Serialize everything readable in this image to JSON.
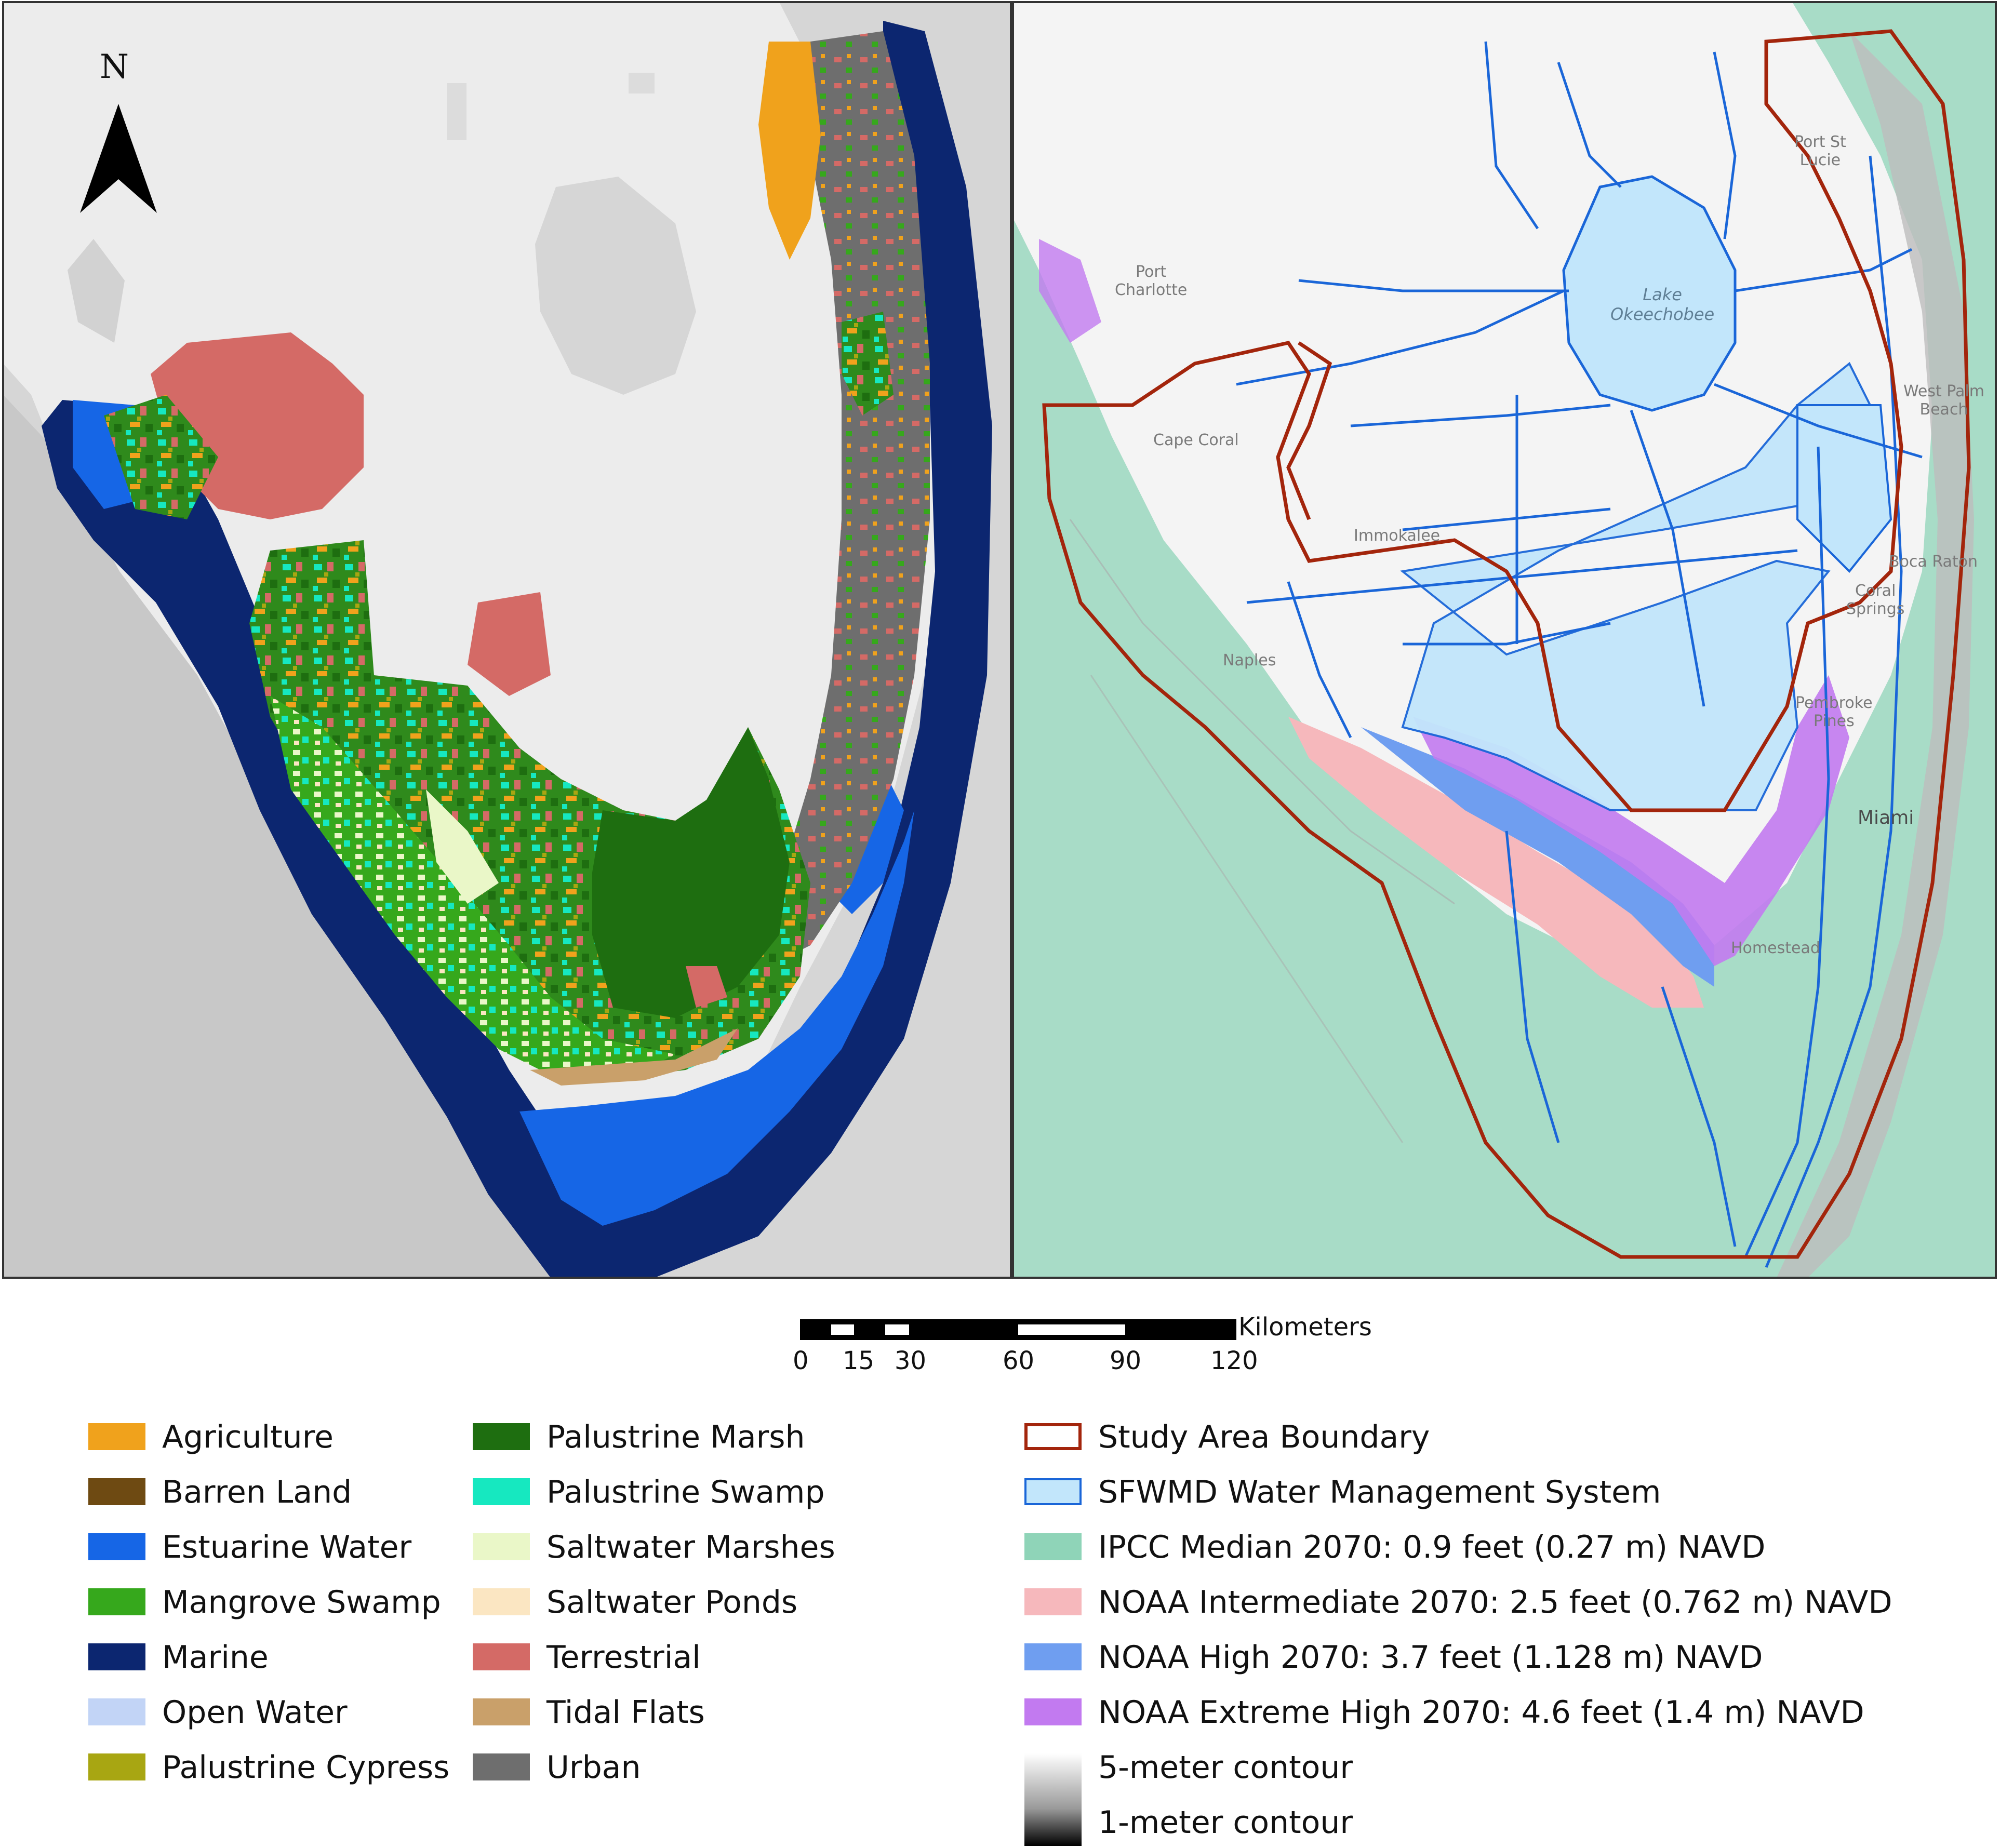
{
  "north_arrow": {
    "letter": "N"
  },
  "right_map_labels": {
    "port_charlotte": [
      "Port",
      "Charlotte"
    ],
    "lake_okeechobee": [
      "Lake",
      "Okeechobee"
    ],
    "port_st_lucie": [
      "Port St",
      "Lucie"
    ],
    "west_palm_beach": [
      "West Palm",
      "Beach"
    ],
    "cape_coral": "Cape Coral",
    "immokalee": "Immokalee",
    "boca_raton": "Boca Raton",
    "coral_springs": [
      "Coral",
      "Springs"
    ],
    "naples": "Naples",
    "pembroke_pines": [
      "Pembroke",
      "Pines"
    ],
    "miami": "Miami",
    "homestead": "Homestead"
  },
  "scale_bar": {
    "unit": "Kilometers",
    "ticks": [
      "0",
      "15",
      "30",
      "60",
      "90",
      "120"
    ]
  },
  "legend_left": [
    {
      "label": "Agriculture",
      "color": "#f0a21c"
    },
    {
      "label": "Barren Land",
      "color": "#6e4a12"
    },
    {
      "label": "Estuarine Water",
      "color": "#1666e6"
    },
    {
      "label": "Mangrove Swamp",
      "color": "#36a81c"
    },
    {
      "label": "Marine",
      "color": "#0c2670"
    },
    {
      "label": "Open Water",
      "color": "#c2d4f6"
    },
    {
      "label": "Palustrine Cypress",
      "color": "#a8a612"
    }
  ],
  "legend_middle": [
    {
      "label": "Palustrine Marsh",
      "color": "#1e6e10"
    },
    {
      "label": "Palustrine Swamp",
      "color": "#16e8c0"
    },
    {
      "label": "Saltwater Marshes",
      "color": "#eaf7c8"
    },
    {
      "label": "Saltwater Ponds",
      "color": "#fbe6c2"
    },
    {
      "label": "Terrestrial",
      "color": "#d46a66"
    },
    {
      "label": "Tidal Flats",
      "color": "#c9a06a"
    },
    {
      "label": "Urban",
      "color": "#6e6e6e"
    }
  ],
  "legend_right": [
    {
      "label": "Study Area Boundary",
      "color": "#a3250c",
      "style": "outline"
    },
    {
      "label": "SFWMD Water Management System",
      "color": "#c2e6fb",
      "border": "#1a66d8"
    },
    {
      "label": "IPCC Median 2070:  0.9 feet (0.27 m) NAVD",
      "color": "#8fd4b8"
    },
    {
      "label": "NOAA Intermediate 2070:  2.5 feet (0.762 m) NAVD",
      "color": "#f6b8bc"
    },
    {
      "label": "NOAA High 2070:  3.7 feet (1.128 m) NAVD",
      "color": "#6f9ef0"
    },
    {
      "label": "NOAA Extreme High 2070: 4.6 feet (1.4 m) NAVD",
      "color": "#c27af0"
    },
    {
      "label": "5-meter contour",
      "color": "#f2f2f2"
    },
    {
      "label": "1-meter contour",
      "color": "#111111"
    }
  ]
}
